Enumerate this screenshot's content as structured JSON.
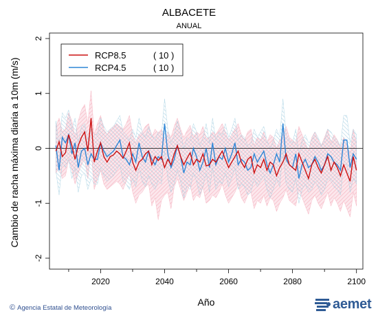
{
  "title": "ALBACETE",
  "subtitle": "ANUAL",
  "credit": "Agencia Estatal de Meteorología",
  "copyright_symbol": "©",
  "logo_text": "aemet",
  "colors": {
    "rcp85_line": "#cc1111",
    "rcp45_line": "#2f86d6",
    "rcp85_band": "#f4a9b8",
    "rcp45_band": "#9fcde0",
    "logo": "#2f5b95",
    "credit": "#2f4f8f"
  },
  "chart_data": {
    "type": "line",
    "title": "ALBACETE",
    "subtitle": "ANUAL",
    "xlabel": "Año",
    "ylabel": "Cambio de racha máxima diaria a 10m (m/s)",
    "xlim": [
      2004,
      2102
    ],
    "ylim": [
      -2.2,
      2.1
    ],
    "x_ticks": [
      2020,
      2040,
      2060,
      2080,
      2100
    ],
    "y_ticks": [
      -2,
      -1,
      0,
      1,
      2
    ],
    "reference_line": 0,
    "grid": false,
    "legend_position": "top-left",
    "x": [
      2006,
      2007,
      2008,
      2009,
      2010,
      2011,
      2012,
      2013,
      2014,
      2015,
      2016,
      2017,
      2018,
      2019,
      2020,
      2021,
      2022,
      2023,
      2024,
      2025,
      2026,
      2027,
      2028,
      2029,
      2030,
      2031,
      2032,
      2033,
      2034,
      2035,
      2036,
      2037,
      2038,
      2039,
      2040,
      2041,
      2042,
      2043,
      2044,
      2045,
      2046,
      2047,
      2048,
      2049,
      2050,
      2051,
      2052,
      2053,
      2054,
      2055,
      2056,
      2057,
      2058,
      2059,
      2060,
      2061,
      2062,
      2063,
      2064,
      2065,
      2066,
      2067,
      2068,
      2069,
      2070,
      2071,
      2072,
      2073,
      2074,
      2075,
      2076,
      2077,
      2078,
      2079,
      2080,
      2081,
      2082,
      2083,
      2084,
      2085,
      2086,
      2087,
      2088,
      2089,
      2090,
      2091,
      2092,
      2093,
      2094,
      2095,
      2096,
      2097,
      2098,
      2099,
      2100
    ],
    "series": [
      {
        "name": "RCP8.5",
        "count_label": "( 10 )",
        "values": [
          -0.05,
          0.12,
          -0.15,
          -0.08,
          0.25,
          0.05,
          -0.2,
          0.05,
          0.2,
          0.3,
          -0.05,
          0.55,
          -0.25,
          -0.05,
          0.1,
          -0.15,
          -0.25,
          -0.15,
          -0.12,
          -0.05,
          -0.1,
          -0.18,
          -0.05,
          0.1,
          -0.25,
          -0.4,
          -0.25,
          -0.2,
          -0.1,
          -0.05,
          -0.3,
          -0.15,
          -0.22,
          -0.15,
          -0.35,
          -0.2,
          -0.3,
          -0.1,
          0.05,
          -0.15,
          -0.3,
          -0.18,
          -0.08,
          -0.3,
          -0.2,
          -0.25,
          -0.1,
          -0.32,
          -0.3,
          -0.2,
          -0.25,
          -0.15,
          -0.05,
          -0.2,
          -0.35,
          -0.25,
          -0.15,
          -0.05,
          -0.25,
          -0.35,
          -0.2,
          -0.15,
          -0.45,
          -0.3,
          -0.35,
          -0.2,
          -0.4,
          -0.25,
          -0.3,
          -0.5,
          -0.35,
          -0.25,
          -0.1,
          -0.3,
          -0.35,
          -0.4,
          -0.1,
          -0.25,
          -0.4,
          -0.55,
          -0.3,
          -0.2,
          -0.35,
          -0.45,
          -0.3,
          -0.15,
          -0.4,
          -0.25,
          -0.35,
          -0.5,
          -0.3,
          -0.45,
          -0.6,
          -0.15,
          -0.4
        ],
        "lower": [
          -0.45,
          -0.35,
          -0.55,
          -0.5,
          -0.2,
          -0.4,
          -0.65,
          -0.45,
          -0.3,
          -0.2,
          -0.55,
          0.0,
          -0.75,
          -0.55,
          -0.4,
          -0.65,
          -0.75,
          -0.7,
          -0.65,
          -0.6,
          -0.65,
          -0.75,
          -0.6,
          -0.45,
          -0.8,
          -1.0,
          -0.85,
          -0.8,
          -0.7,
          -0.65,
          -1.05,
          -0.9,
          -1.3,
          -0.95,
          -0.85,
          -0.8,
          -1.1,
          -0.7,
          -0.55,
          -0.75,
          -0.95,
          -0.8,
          -0.65,
          -0.95,
          -0.85,
          -0.9,
          -0.7,
          -1.0,
          -0.95,
          -0.85,
          -0.9,
          -0.8,
          -0.65,
          -0.85,
          -1.0,
          -0.9,
          -0.8,
          -0.65,
          -0.9,
          -1.0,
          -0.85,
          -0.8,
          -1.1,
          -0.95,
          -1.0,
          -0.85,
          -1.05,
          -0.9,
          -0.95,
          -1.15,
          -1.0,
          -0.9,
          -0.75,
          -0.95,
          -1.0,
          -1.05,
          -0.75,
          -0.9,
          -1.05,
          -1.2,
          -0.95,
          -0.85,
          -1.0,
          -1.1,
          -0.95,
          -0.8,
          -1.05,
          -0.9,
          -1.0,
          -1.15,
          -0.95,
          -1.1,
          -1.25,
          -0.8,
          -1.05
        ],
        "upper": [
          0.4,
          0.55,
          0.3,
          0.35,
          0.65,
          0.5,
          0.2,
          0.5,
          0.7,
          0.8,
          0.45,
          1.05,
          0.25,
          0.45,
          0.6,
          0.35,
          0.25,
          0.35,
          0.4,
          0.45,
          0.4,
          0.35,
          0.45,
          0.6,
          0.25,
          0.1,
          0.25,
          0.3,
          0.4,
          0.45,
          0.2,
          0.35,
          0.28,
          0.35,
          0.15,
          0.3,
          0.2,
          0.4,
          0.55,
          0.35,
          0.2,
          0.32,
          0.42,
          0.2,
          0.3,
          0.25,
          0.4,
          0.18,
          0.2,
          0.3,
          0.25,
          0.35,
          0.45,
          0.3,
          0.15,
          0.25,
          0.35,
          0.45,
          0.25,
          0.15,
          0.3,
          0.35,
          0.05,
          0.2,
          0.15,
          0.3,
          0.1,
          0.25,
          0.2,
          0.0,
          0.15,
          0.25,
          0.4,
          0.2,
          0.15,
          0.1,
          0.4,
          0.25,
          0.1,
          -0.05,
          0.2,
          0.3,
          0.15,
          0.05,
          0.2,
          0.35,
          0.1,
          0.25,
          0.15,
          0.0,
          0.2,
          0.05,
          -0.1,
          0.35,
          0.1
        ]
      },
      {
        "name": "RCP4.5",
        "count_label": "( 10 )",
        "values": [
          0.05,
          -0.4,
          0.2,
          0.1,
          0.25,
          -0.1,
          0.1,
          -0.35,
          -0.05,
          0.0,
          -0.3,
          -0.1,
          -0.2,
          -0.2,
          0.1,
          -0.05,
          -0.15,
          -0.1,
          -0.05,
          0.05,
          0.15,
          -0.15,
          -0.2,
          -0.3,
          -0.1,
          -0.25,
          0.1,
          -0.15,
          -0.25,
          -0.05,
          -0.2,
          -0.3,
          -0.15,
          -0.2,
          0.45,
          -0.1,
          -0.35,
          -0.2,
          0.05,
          -0.15,
          -0.45,
          -0.25,
          -0.3,
          0.0,
          -0.15,
          -0.4,
          -0.25,
          0.0,
          -0.35,
          0.1,
          -0.3,
          -0.15,
          -0.2,
          0.0,
          -0.25,
          -0.1,
          0.1,
          -0.3,
          -0.2,
          -0.25,
          -0.4,
          -0.35,
          -0.1,
          -0.25,
          -0.15,
          -0.05,
          -0.3,
          -0.45,
          -0.3,
          -0.1,
          -0.25,
          0.45,
          -0.2,
          -0.3,
          -0.35,
          -0.1,
          -0.55,
          -0.3,
          -0.2,
          -0.35,
          -0.3,
          -0.15,
          -0.25,
          -0.4,
          -0.3,
          -0.1,
          -0.15,
          -0.25,
          -0.3,
          -0.4,
          0.15,
          0.15,
          -0.35,
          -0.1,
          -0.2
        ],
        "lower": [
          -0.4,
          -0.85,
          -0.25,
          -0.35,
          -0.2,
          -0.55,
          -0.35,
          -0.8,
          -0.5,
          -0.45,
          -0.75,
          -0.55,
          -0.65,
          -0.65,
          -0.35,
          -0.5,
          -0.6,
          -0.55,
          -0.5,
          -0.4,
          -0.3,
          -0.6,
          -0.65,
          -0.75,
          -0.55,
          -0.7,
          -0.35,
          -0.6,
          -0.7,
          -0.5,
          -0.65,
          -0.75,
          -0.6,
          -0.65,
          -0.05,
          -0.55,
          -0.8,
          -0.65,
          -0.4,
          -0.6,
          -0.9,
          -0.7,
          -0.75,
          -0.45,
          -0.6,
          -0.85,
          -0.7,
          -0.45,
          -0.8,
          -0.35,
          -0.75,
          -0.6,
          -0.65,
          -0.45,
          -0.7,
          -0.55,
          -0.35,
          -0.75,
          -0.65,
          -0.7,
          -0.85,
          -0.8,
          -0.55,
          -0.7,
          -0.6,
          -0.5,
          -0.75,
          -0.9,
          -0.75,
          -0.55,
          -0.7,
          -0.05,
          -0.65,
          -0.75,
          -0.8,
          -0.55,
          -1.0,
          -0.75,
          -0.65,
          -0.8,
          -0.75,
          -0.6,
          -0.7,
          -0.85,
          -0.75,
          -0.55,
          -0.6,
          -0.7,
          -0.75,
          -0.85,
          -0.3,
          -0.3,
          -0.8,
          -0.55,
          -0.65
        ],
        "upper": [
          0.5,
          0.05,
          0.65,
          0.55,
          0.7,
          0.35,
          0.55,
          0.1,
          0.4,
          0.45,
          0.15,
          0.35,
          0.25,
          0.25,
          0.55,
          0.4,
          0.3,
          0.35,
          0.4,
          0.5,
          0.6,
          0.3,
          0.25,
          0.15,
          0.35,
          0.2,
          0.55,
          0.3,
          0.2,
          0.4,
          0.25,
          0.15,
          0.3,
          0.25,
          0.9,
          0.35,
          0.1,
          0.25,
          0.5,
          0.3,
          0.0,
          0.2,
          0.15,
          0.45,
          0.3,
          0.05,
          0.2,
          0.45,
          0.1,
          0.55,
          0.15,
          0.3,
          0.25,
          0.45,
          0.2,
          0.35,
          0.55,
          0.15,
          0.25,
          0.2,
          0.05,
          0.1,
          0.35,
          0.2,
          0.3,
          0.4,
          0.15,
          0.0,
          0.15,
          0.35,
          0.2,
          0.9,
          0.25,
          0.15,
          0.1,
          0.35,
          -0.1,
          0.15,
          0.25,
          0.1,
          0.15,
          0.3,
          0.2,
          0.05,
          0.15,
          0.35,
          0.3,
          0.2,
          0.15,
          0.05,
          0.6,
          0.6,
          0.1,
          0.35,
          0.25
        ]
      }
    ]
  }
}
